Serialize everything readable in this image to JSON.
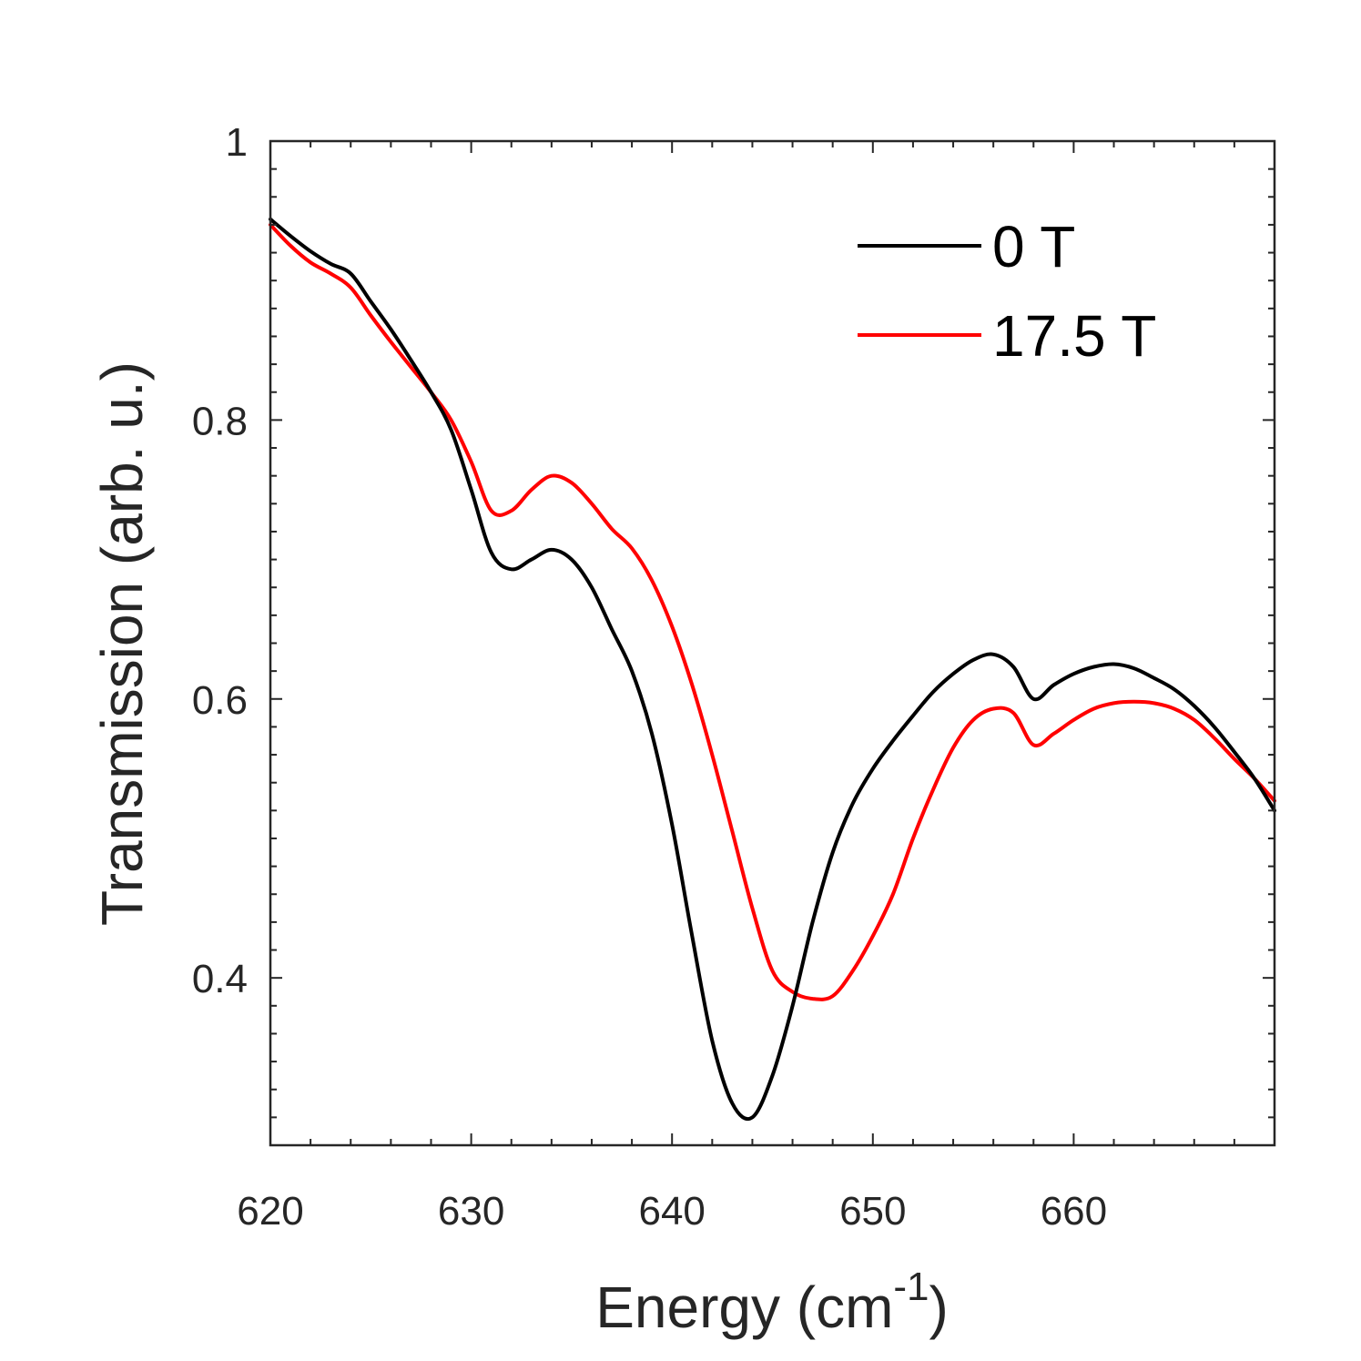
{
  "chart_data": {
    "type": "line",
    "title": "",
    "xlabel": "Energy (cm",
    "xlabel_superscript": "-1",
    "xlabel_suffix": ")",
    "ylabel": "Transmission (arb. u.)",
    "xlim": [
      620,
      670
    ],
    "ylim": [
      0.28,
      1.0
    ],
    "xticks": [
      620,
      630,
      640,
      650,
      660
    ],
    "xtick_labels": [
      "620",
      "630",
      "640",
      "650",
      "660"
    ],
    "yticks": [
      0.4,
      0.6,
      0.8,
      1.0
    ],
    "ytick_labels": [
      "0.4",
      "0.6",
      "0.8",
      "1"
    ],
    "legend_position": "top-right",
    "grid": false,
    "series": [
      {
        "name": "0 T",
        "color": "#000000",
        "x": [
          620,
          621,
          622,
          623,
          624,
          625,
          626,
          627,
          628,
          629,
          630,
          631,
          632,
          633,
          634,
          635,
          636,
          637,
          638,
          639,
          640,
          641,
          642,
          643,
          644,
          645,
          646,
          647,
          648,
          649,
          650,
          651,
          652,
          653,
          654,
          655,
          656,
          657,
          658,
          659,
          660,
          661,
          662,
          663,
          664,
          665,
          666,
          667,
          668,
          669,
          670
        ],
        "values": [
          0.944,
          0.932,
          0.921,
          0.912,
          0.905,
          0.885,
          0.865,
          0.843,
          0.82,
          0.793,
          0.75,
          0.705,
          0.693,
          0.7,
          0.707,
          0.7,
          0.68,
          0.65,
          0.62,
          0.575,
          0.51,
          0.43,
          0.355,
          0.31,
          0.3,
          0.33,
          0.38,
          0.44,
          0.49,
          0.525,
          0.55,
          0.57,
          0.588,
          0.605,
          0.618,
          0.628,
          0.632,
          0.623,
          0.6,
          0.61,
          0.618,
          0.623,
          0.625,
          0.622,
          0.615,
          0.607,
          0.595,
          0.58,
          0.562,
          0.543,
          0.52
        ]
      },
      {
        "name": "17.5 T",
        "color": "#ff0000",
        "x": [
          620,
          621,
          622,
          623,
          624,
          625,
          626,
          627,
          628,
          629,
          630,
          631,
          632,
          633,
          634,
          635,
          636,
          637,
          638,
          639,
          640,
          641,
          642,
          643,
          644,
          645,
          646,
          647,
          648,
          649,
          650,
          651,
          652,
          653,
          654,
          655,
          656,
          657,
          658,
          659,
          660,
          661,
          662,
          663,
          664,
          665,
          666,
          667,
          668,
          669,
          670
        ],
        "values": [
          0.94,
          0.925,
          0.913,
          0.905,
          0.895,
          0.875,
          0.856,
          0.838,
          0.82,
          0.8,
          0.77,
          0.735,
          0.735,
          0.75,
          0.76,
          0.755,
          0.74,
          0.722,
          0.708,
          0.685,
          0.652,
          0.61,
          0.56,
          0.505,
          0.45,
          0.405,
          0.39,
          0.385,
          0.387,
          0.405,
          0.43,
          0.46,
          0.5,
          0.535,
          0.565,
          0.585,
          0.593,
          0.59,
          0.567,
          0.575,
          0.585,
          0.593,
          0.597,
          0.598,
          0.597,
          0.593,
          0.585,
          0.572,
          0.557,
          0.543,
          0.527
        ]
      }
    ]
  }
}
